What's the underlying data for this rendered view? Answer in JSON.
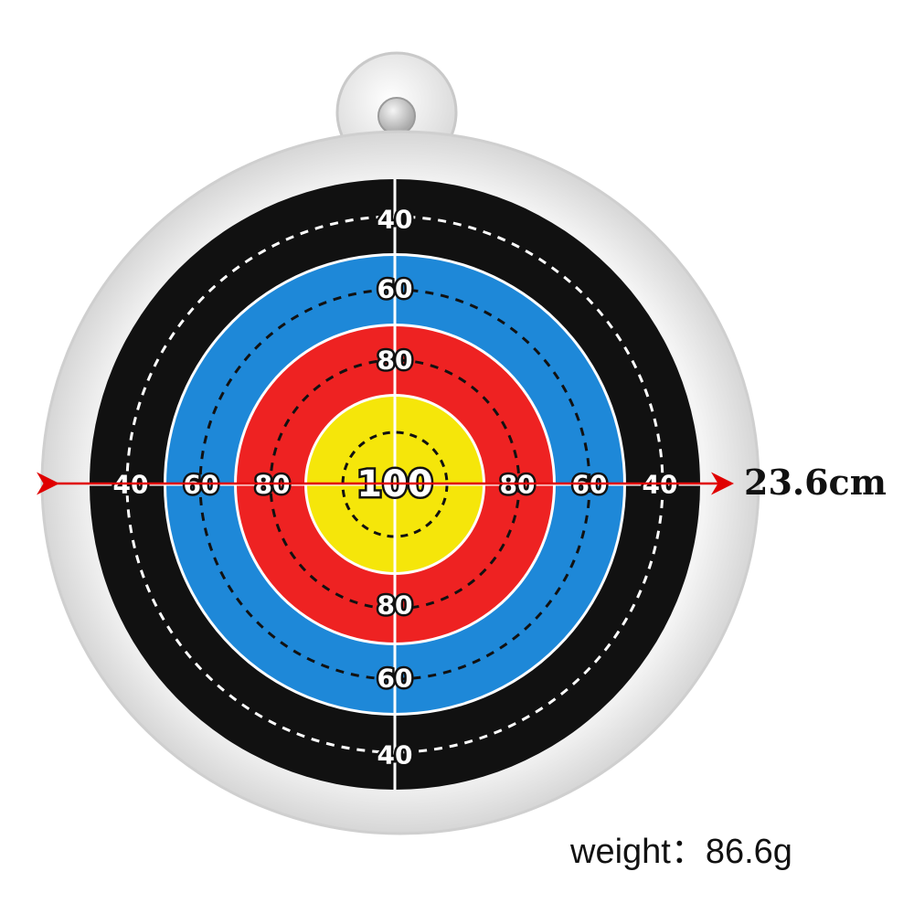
{
  "target": {
    "rings": [
      {
        "label": "40",
        "color": "#111111"
      },
      {
        "label": "60",
        "color": "#1e88d8"
      },
      {
        "label": "80",
        "color": "#ee2222"
      },
      {
        "label": "100",
        "color": "#f5e60a"
      }
    ],
    "frame_color": "#efefef",
    "divider_color": "#ffffff",
    "dash_color_light": "#ffffff",
    "dash_color_dark": "#111111"
  },
  "dimension": {
    "label": "23.6cm",
    "arrow_color": "#e00000"
  },
  "weight": {
    "label": "weight：86.6g"
  }
}
